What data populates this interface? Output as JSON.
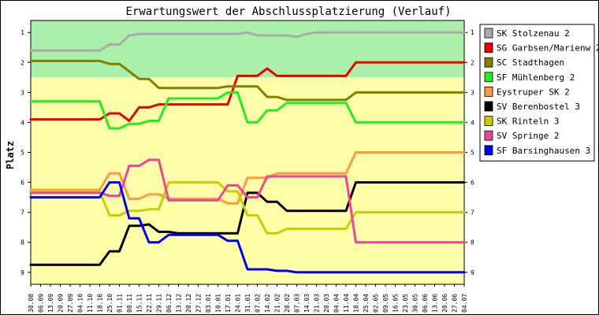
{
  "chart_data": {
    "type": "line",
    "title": "Erwartungswert der Abschlussplatzierung (Verlauf)",
    "ylabel": "Platz",
    "ylim": [
      1,
      9
    ],
    "y_inverted": true,
    "yticks": [
      "1",
      "2",
      "3",
      "4",
      "5",
      "6",
      "7",
      "8",
      "9"
    ],
    "zones": [
      {
        "name": "promotion",
        "from": 0.6,
        "to": 2.5,
        "color": "#aaf0aa"
      },
      {
        "name": "rest",
        "from": 2.5,
        "to": 9.4,
        "color": "#ffffaa"
      }
    ],
    "categories": [
      "30.08",
      "06.09",
      "13.09",
      "20.09",
      "27.09",
      "04.10",
      "11.10",
      "18.10",
      "25.10",
      "01.11",
      "08.11",
      "15.11",
      "22.11",
      "29.11",
      "06.12",
      "13.12",
      "20.12",
      "27.12",
      "03.01",
      "10.01",
      "17.01",
      "24.01",
      "31.01",
      "07.02",
      "14.02",
      "21.02",
      "28.02",
      "07.03",
      "14.03",
      "21.03",
      "28.03",
      "04.04",
      "11.04",
      "18.04",
      "25.04",
      "02.05",
      "09.05",
      "16.05",
      "23.05",
      "30.05",
      "06.06",
      "13.06",
      "20.06",
      "27.06",
      "04.07"
    ],
    "legend_position": "right",
    "series": [
      {
        "name": "SK Stolzenau 2",
        "color": "#aaaaaa",
        "values": [
          1.6,
          1.6,
          1.6,
          1.6,
          1.6,
          1.6,
          1.6,
          1.6,
          1.4,
          1.4,
          1.1,
          1.05,
          1.05,
          1.05,
          1.05,
          1.05,
          1.05,
          1.05,
          1.05,
          1.05,
          1.05,
          1.05,
          1.0,
          1.1,
          1.1,
          1.1,
          1.1,
          1.15,
          1.05,
          1.0,
          1.0,
          1.0,
          1.0,
          1.0,
          1.0,
          1.0,
          1.0,
          1.0,
          1.0,
          1.0,
          1.0,
          1.0,
          1.0,
          1.0,
          1.0
        ]
      },
      {
        "name": "SG Garbsen/Marienw 2",
        "color": "#ee0000",
        "values": [
          3.9,
          3.9,
          3.9,
          3.9,
          3.9,
          3.9,
          3.9,
          3.9,
          3.7,
          3.7,
          3.95,
          3.5,
          3.5,
          3.4,
          3.4,
          3.4,
          3.4,
          3.4,
          3.4,
          3.4,
          3.4,
          2.45,
          2.45,
          2.45,
          2.2,
          2.45,
          2.45,
          2.45,
          2.45,
          2.45,
          2.45,
          2.45,
          2.45,
          2.0,
          2.0,
          2.0,
          2.0,
          2.0,
          2.0,
          2.0,
          2.0,
          2.0,
          2.0,
          2.0,
          2.0
        ]
      },
      {
        "name": "SC Stadthagen",
        "color": "#808000",
        "values": [
          1.95,
          1.95,
          1.95,
          1.95,
          1.95,
          1.95,
          1.95,
          1.95,
          2.05,
          2.05,
          2.3,
          2.55,
          2.55,
          2.85,
          2.85,
          2.85,
          2.85,
          2.85,
          2.85,
          2.85,
          2.8,
          2.8,
          2.8,
          2.8,
          3.15,
          3.15,
          3.25,
          3.25,
          3.25,
          3.25,
          3.25,
          3.25,
          3.25,
          3.0,
          3.0,
          3.0,
          3.0,
          3.0,
          3.0,
          3.0,
          3.0,
          3.0,
          3.0,
          3.0,
          3.0
        ]
      },
      {
        "name": "SF Mühlenberg 2",
        "color": "#22ee22",
        "values": [
          3.3,
          3.3,
          3.3,
          3.3,
          3.3,
          3.3,
          3.3,
          3.3,
          4.2,
          4.2,
          4.05,
          4.05,
          3.95,
          3.95,
          3.2,
          3.2,
          3.2,
          3.2,
          3.2,
          3.2,
          3.0,
          3.0,
          4.0,
          4.0,
          3.6,
          3.6,
          3.35,
          3.35,
          3.35,
          3.35,
          3.35,
          3.35,
          3.35,
          4.0,
          4.0,
          4.0,
          4.0,
          4.0,
          4.0,
          4.0,
          4.0,
          4.0,
          4.0,
          4.0,
          4.0
        ]
      },
      {
        "name": "Eystruper SK 2",
        "color": "#ff9944",
        "values": [
          6.25,
          6.25,
          6.25,
          6.25,
          6.25,
          6.25,
          6.25,
          6.25,
          5.7,
          5.7,
          6.55,
          6.55,
          6.4,
          6.4,
          6.55,
          6.55,
          6.55,
          6.55,
          6.55,
          6.55,
          6.7,
          6.7,
          5.85,
          5.85,
          5.85,
          5.7,
          5.7,
          5.7,
          5.7,
          5.7,
          5.7,
          5.7,
          5.7,
          5.0,
          5.0,
          5.0,
          5.0,
          5.0,
          5.0,
          5.0,
          5.0,
          5.0,
          5.0,
          5.0,
          5.0
        ]
      },
      {
        "name": "SV Berenbostel 3",
        "color": "#000000",
        "values": [
          8.75,
          8.75,
          8.75,
          8.75,
          8.75,
          8.75,
          8.75,
          8.75,
          8.3,
          8.3,
          7.45,
          7.45,
          7.4,
          7.65,
          7.65,
          7.7,
          7.7,
          7.7,
          7.7,
          7.7,
          7.7,
          7.7,
          6.35,
          6.35,
          6.65,
          6.65,
          6.95,
          6.95,
          6.95,
          6.95,
          6.95,
          6.95,
          6.95,
          6.0,
          6.0,
          6.0,
          6.0,
          6.0,
          6.0,
          6.0,
          6.0,
          6.0,
          6.0,
          6.0,
          6.0
        ]
      },
      {
        "name": "SK Rinteln 3",
        "color": "#cccc00",
        "values": [
          6.3,
          6.3,
          6.3,
          6.3,
          6.3,
          6.3,
          6.3,
          6.3,
          7.1,
          7.1,
          6.95,
          6.95,
          6.9,
          6.9,
          6.0,
          6.0,
          6.0,
          6.0,
          6.0,
          6.0,
          6.3,
          6.3,
          7.1,
          7.1,
          7.7,
          7.7,
          7.55,
          7.55,
          7.55,
          7.55,
          7.55,
          7.55,
          7.55,
          7.0,
          7.0,
          7.0,
          7.0,
          7.0,
          7.0,
          7.0,
          7.0,
          7.0,
          7.0,
          7.0,
          7.0
        ]
      },
      {
        "name": "SV Springe 2",
        "color": "#ee4499",
        "values": [
          6.35,
          6.35,
          6.35,
          6.35,
          6.35,
          6.35,
          6.35,
          6.35,
          6.45,
          6.45,
          5.45,
          5.45,
          5.25,
          5.25,
          6.6,
          6.6,
          6.6,
          6.6,
          6.6,
          6.6,
          6.1,
          6.1,
          6.5,
          6.5,
          5.8,
          5.8,
          5.8,
          5.8,
          5.8,
          5.8,
          5.8,
          5.8,
          5.8,
          8.0,
          8.0,
          8.0,
          8.0,
          8.0,
          8.0,
          8.0,
          8.0,
          8.0,
          8.0,
          8.0,
          8.0
        ]
      },
      {
        "name": "SF Barsinghausen 3",
        "color": "#0000ee",
        "values": [
          6.5,
          6.5,
          6.5,
          6.5,
          6.5,
          6.5,
          6.5,
          6.5,
          6.0,
          6.0,
          7.2,
          7.2,
          8.0,
          8.0,
          7.75,
          7.75,
          7.75,
          7.75,
          7.75,
          7.75,
          7.95,
          7.95,
          8.9,
          8.9,
          8.9,
          8.95,
          8.95,
          9.0,
          9.0,
          9.0,
          9.0,
          9.0,
          9.0,
          9.0,
          9.0,
          9.0,
          9.0,
          9.0,
          9.0,
          9.0,
          9.0,
          9.0,
          9.0,
          9.0,
          9.0
        ]
      }
    ]
  }
}
